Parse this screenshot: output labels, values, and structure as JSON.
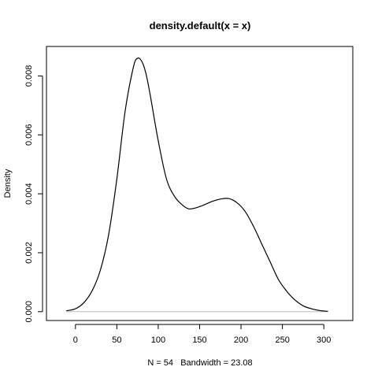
{
  "chart_data": {
    "type": "line",
    "title": "density.default(x = x)",
    "xlabel": "N = 54   Bandwidth = 23.08",
    "ylabel": "Density",
    "xlim": [
      -35,
      335
    ],
    "ylim": [
      -0.0003,
      0.009
    ],
    "x_ticks": [
      0,
      50,
      100,
      150,
      200,
      250,
      300
    ],
    "x_tick_labels": [
      "0",
      "50",
      "100",
      "150",
      "200",
      "250",
      "300"
    ],
    "y_ticks": [
      0.0,
      0.002,
      0.004,
      0.006,
      0.008
    ],
    "y_tick_labels": [
      "0.000",
      "0.002",
      "0.004",
      "0.006",
      "0.008"
    ],
    "baseline": 0,
    "baseline_color": "#bebebe",
    "line_color": "#000000",
    "series": [
      {
        "x": [
          -11,
          0,
          10,
          20,
          30,
          40,
          50,
          60,
          70,
          75,
          80,
          85,
          90,
          100,
          110,
          120,
          130,
          137,
          145,
          155,
          165,
          175,
          185,
          195,
          205,
          215,
          225,
          235,
          245,
          255,
          265,
          275,
          285,
          295,
          305
        ],
        "y": [
          3e-05,
          0.0001,
          0.0003,
          0.0007,
          0.0014,
          0.0026,
          0.0045,
          0.0068,
          0.0083,
          0.0086,
          0.0085,
          0.0081,
          0.0074,
          0.0058,
          0.0045,
          0.0039,
          0.0036,
          0.00349,
          0.00352,
          0.00362,
          0.00374,
          0.00382,
          0.00384,
          0.0037,
          0.0034,
          0.0029,
          0.0023,
          0.0017,
          0.0011,
          0.0007,
          0.0004,
          0.0002,
          0.0001,
          4e-05,
          1e-05
        ]
      }
    ]
  }
}
